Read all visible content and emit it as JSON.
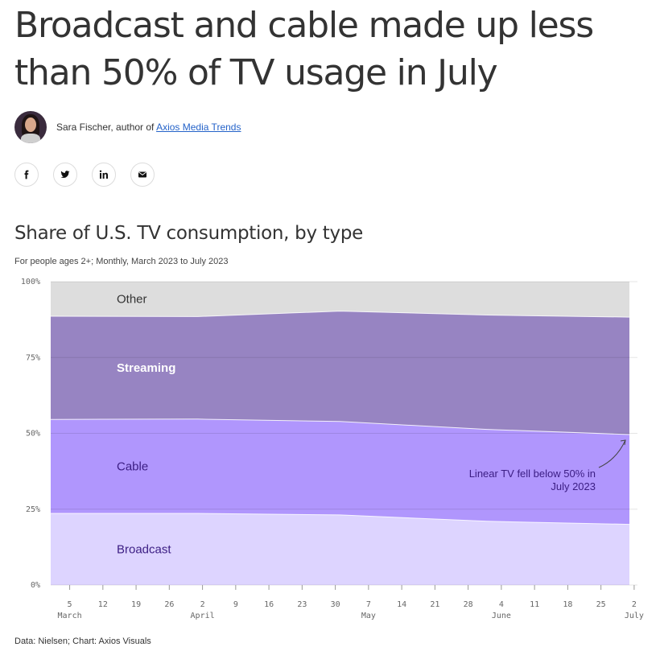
{
  "article": {
    "headline": "Broadcast and cable made up less than 50% of TV usage in July",
    "byline_prefix": "Sara Fischer, author of ",
    "byline_link": "Axios Media Trends"
  },
  "share_buttons": [
    {
      "icon": "facebook-icon"
    },
    {
      "icon": "twitter-icon"
    },
    {
      "icon": "linkedin-icon"
    },
    {
      "icon": "email-icon"
    }
  ],
  "colors": {
    "broadcast": "#ddd4ff",
    "cable": "#b096fd",
    "streaming": "#9784c2",
    "other": "#dddddd",
    "label_dark": "#3b1d83",
    "label_light": "#ffffff"
  },
  "chart_data": {
    "type": "area",
    "stacked": true,
    "title": "Share of U.S. TV consumption, by type",
    "subtitle": "For people ages 2+; Monthly, March 2023 to July 2023",
    "x": [
      "2023-03-01",
      "2023-04-01",
      "2023-05-01",
      "2023-06-01",
      "2023-07-01"
    ],
    "series": [
      {
        "name": "Broadcast",
        "values": [
          23.6,
          23.6,
          23.1,
          21.0,
          20.0
        ]
      },
      {
        "name": "Cable",
        "values": [
          31.0,
          31.1,
          30.8,
          30.3,
          29.6
        ]
      },
      {
        "name": "Streaming",
        "values": [
          34.0,
          33.8,
          36.4,
          37.7,
          38.7
        ]
      },
      {
        "name": "Other",
        "values": [
          11.4,
          11.5,
          9.7,
          11.0,
          11.7
        ]
      }
    ],
    "ylim": [
      0,
      100
    ],
    "y_ticks": [
      "0%",
      "25%",
      "50%",
      "75%",
      "100%"
    ],
    "y_tick_values": [
      0,
      25,
      50,
      75,
      100
    ],
    "x_ticks": [
      {
        "date": "2023-03-05",
        "label": "5",
        "month": "March"
      },
      {
        "date": "2023-03-12",
        "label": "12",
        "month": ""
      },
      {
        "date": "2023-03-19",
        "label": "19",
        "month": ""
      },
      {
        "date": "2023-03-26",
        "label": "26",
        "month": ""
      },
      {
        "date": "2023-04-02",
        "label": "2",
        "month": "April"
      },
      {
        "date": "2023-04-09",
        "label": "9",
        "month": ""
      },
      {
        "date": "2023-04-16",
        "label": "16",
        "month": ""
      },
      {
        "date": "2023-04-23",
        "label": "23",
        "month": ""
      },
      {
        "date": "2023-04-30",
        "label": "30",
        "month": ""
      },
      {
        "date": "2023-05-07",
        "label": "7",
        "month": "May"
      },
      {
        "date": "2023-05-14",
        "label": "14",
        "month": ""
      },
      {
        "date": "2023-05-21",
        "label": "21",
        "month": ""
      },
      {
        "date": "2023-05-28",
        "label": "28",
        "month": ""
      },
      {
        "date": "2023-06-04",
        "label": "4",
        "month": "June"
      },
      {
        "date": "2023-06-11",
        "label": "11",
        "month": ""
      },
      {
        "date": "2023-06-18",
        "label": "18",
        "month": ""
      },
      {
        "date": "2023-06-25",
        "label": "25",
        "month": ""
      },
      {
        "date": "2023-07-02",
        "label": "2",
        "month": "July"
      }
    ],
    "annotation": {
      "lines": [
        "Linear TV fell below 50% in",
        "July 2023"
      ],
      "date": "2023-07-01",
      "value": 49.6
    },
    "grid": true,
    "source": "Data: Nielsen; Chart: Axios Visuals"
  }
}
